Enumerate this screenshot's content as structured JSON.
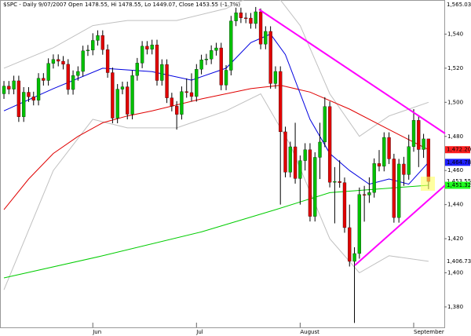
{
  "chart_data": {
    "type": "candlestick",
    "title": "$SPC - Daily 9/07/2007 Open 1478.55, Hi 1478.55, Lo 1449.07, Close 1453.55 (-1.7%)",
    "ylim": [
      1368,
      1560
    ],
    "yticks": [
      {
        "value": 1380,
        "label": "1,380"
      },
      {
        "value": 1400,
        "label": "1,400"
      },
      {
        "value": 1420,
        "label": "1,420"
      },
      {
        "value": 1440,
        "label": "1,440"
      },
      {
        "value": 1460,
        "label": "1,460"
      },
      {
        "value": 1480,
        "label": "1,480"
      },
      {
        "value": 1500,
        "label": "1,500"
      },
      {
        "value": 1520,
        "label": "1,520"
      },
      {
        "value": 1540,
        "label": "1,540"
      }
    ],
    "xlim": [
      -0.8,
      89.2
    ],
    "xticks": [
      {
        "value": 18,
        "label": "Jun"
      },
      {
        "value": 39,
        "label": "Jul"
      },
      {
        "value": 60,
        "label": "August"
      },
      {
        "value": 83,
        "label": "September"
      }
    ],
    "up_color": "#00c000",
    "down_color": "#e00000",
    "open": [
      1505.0,
      1509.5,
      1507.7,
      1512.6,
      1491.5,
      1505.9,
      1503.2,
      1501.2,
      1514.1,
      1512.8,
      1522.8,
      1525.1,
      1524.1,
      1522.3,
      1507.5,
      1515.7,
      1518.1,
      1530.2,
      1530.6,
      1536.3,
      1539.2,
      1530.9,
      1517.4,
      1490.7,
      1507.7,
      1509.1,
      1493.0,
      1515.7,
      1523.0,
      1532.9,
      1531.1,
      1533.7,
      1512.8,
      1522.2,
      1502.6,
      1497.7,
      1492.9,
      1506.3,
      1505.7,
      1503.4,
      1519.4,
      1524.9,
      1525.4,
      1530.4,
      1531.9,
      1510.1,
      1518.8,
      1547.7,
      1552.5,
      1549.5,
      1549.4,
      1546.2,
      1553.1,
      1534.1,
      1541.6,
      1511.0,
      1518.1,
      1482.7,
      1459.0,
      1473.9,
      1455.3,
      1465.8,
      1472.2,
      1433.1,
      1467.7,
      1476.7,
      1497.5,
      1453.1,
      1453.6,
      1452.9,
      1426.5,
      1406.7,
      1411.3,
      1445.9,
      1445.6,
      1447.1,
      1464.1,
      1462.5,
      1479.4,
      1466.8,
      1432.4,
      1463.8,
      1457.6,
      1474.0,
      1489.4,
      1472.3,
      1478.55
    ],
    "high": [
      1512.5,
      1512.5,
      1515.6,
      1515.6,
      1508.9,
      1508.9,
      1506.2,
      1517.1,
      1517.1,
      1525.8,
      1528.1,
      1528.1,
      1527.1,
      1525.3,
      1518.7,
      1521.1,
      1533.2,
      1533.6,
      1540.5,
      1542.2,
      1542.2,
      1533.9,
      1520.4,
      1510.7,
      1512.1,
      1512.1,
      1518.7,
      1526.0,
      1535.9,
      1535.9,
      1536.7,
      1536.7,
      1525.2,
      1525.2,
      1505.6,
      1500.7,
      1509.3,
      1514.0,
      1517.0,
      1522.4,
      1527.9,
      1528.4,
      1533.4,
      1534.9,
      1534.9,
      1521.8,
      1550.7,
      1555.5,
      1555.5,
      1552.5,
      1552.4,
      1555.9,
      1555.0,
      1544.6,
      1544.6,
      1521.1,
      1521.1,
      1485.7,
      1476.9,
      1488.0,
      1468.8,
      1476.0,
      1476.0,
      1470.7,
      1488.0,
      1503.0,
      1500.5,
      1462.0,
      1466.0,
      1455.9,
      1440.0,
      1415.0,
      1450.0,
      1451.0,
      1456.0,
      1467.1,
      1472.0,
      1482.4,
      1482.4,
      1469.8,
      1466.8,
      1468.0,
      1481.0,
      1496.0,
      1492.4,
      1481.5,
      1478.55
    ],
    "low": [
      1502.0,
      1504.7,
      1504.7,
      1488.5,
      1488.5,
      1500.2,
      1498.2,
      1498.2,
      1509.8,
      1509.8,
      1519.8,
      1521.1,
      1519.3,
      1504.5,
      1504.5,
      1512.7,
      1515.1,
      1527.2,
      1527.6,
      1533.3,
      1527.9,
      1514.4,
      1487.7,
      1487.7,
      1504.7,
      1490.0,
      1490.0,
      1512.7,
      1520.0,
      1528.1,
      1528.1,
      1509.8,
      1509.8,
      1499.6,
      1494.7,
      1484.0,
      1489.9,
      1502.7,
      1500.4,
      1500.4,
      1516.4,
      1521.9,
      1522.4,
      1527.4,
      1507.1,
      1507.1,
      1515.8,
      1544.7,
      1546.5,
      1546.4,
      1543.2,
      1543.2,
      1531.1,
      1531.1,
      1508.0,
      1508.0,
      1440.0,
      1456.0,
      1456.0,
      1452.3,
      1440.0,
      1460.0,
      1430.1,
      1430.1,
      1455.0,
      1473.7,
      1450.1,
      1429.0,
      1449.9,
      1423.5,
      1403.7,
      1370.6,
      1408.3,
      1430.0,
      1441.0,
      1444.1,
      1459.5,
      1459.5,
      1463.8,
      1429.4,
      1429.4,
      1451.0,
      1454.6,
      1471.0,
      1462.0,
      1467.4,
      1449.07
    ],
    "close": [
      1509.5,
      1507.7,
      1512.6,
      1491.5,
      1505.9,
      1503.2,
      1501.2,
      1514.1,
      1512.8,
      1522.8,
      1525.1,
      1524.1,
      1522.3,
      1507.5,
      1515.7,
      1518.1,
      1530.2,
      1530.6,
      1536.3,
      1539.2,
      1530.9,
      1517.4,
      1490.7,
      1507.7,
      1509.1,
      1493.0,
      1515.7,
      1523.0,
      1532.9,
      1531.1,
      1533.7,
      1512.8,
      1522.2,
      1502.6,
      1497.7,
      1492.9,
      1506.3,
      1505.7,
      1503.4,
      1519.4,
      1524.9,
      1525.4,
      1530.4,
      1531.9,
      1510.1,
      1518.8,
      1547.7,
      1552.5,
      1549.5,
      1549.4,
      1546.2,
      1553.1,
      1534.1,
      1541.6,
      1511.0,
      1518.1,
      1482.7,
      1459.0,
      1473.9,
      1455.3,
      1465.8,
      1472.2,
      1433.1,
      1467.7,
      1476.7,
      1497.5,
      1453.1,
      1453.6,
      1452.9,
      1426.5,
      1406.7,
      1411.3,
      1445.9,
      1445.6,
      1447.1,
      1464.1,
      1462.5,
      1479.4,
      1466.8,
      1432.4,
      1463.8,
      1457.6,
      1474.0,
      1489.4,
      1472.3,
      1478.55,
      1453.55
    ],
    "lines": [
      {
        "color": "#c0c0c0",
        "x": [
          0,
          10,
          18,
          25,
          35,
          45,
          52,
          56,
          60,
          66,
          72,
          78,
          86
        ],
        "values": [
          1520,
          1532,
          1545,
          1548,
          1548,
          1555,
          1565,
          1560,
          1545,
          1505,
          1480,
          1492,
          1500
        ]
      },
      {
        "color": "#c0c0c0",
        "x": [
          0,
          10,
          18,
          25,
          35,
          45,
          52,
          58,
          66,
          72,
          78,
          86
        ],
        "values": [
          1390,
          1460,
          1490,
          1485,
          1485,
          1495,
          1505,
          1475,
          1420,
          1400,
          1410,
          1406.73
        ]
      },
      {
        "color": "#00cc00",
        "x": [
          0,
          20,
          40,
          55,
          66,
          75,
          86
        ],
        "values": [
          1397,
          1410,
          1424,
          1437,
          1447,
          1449,
          1451.32
        ]
      },
      {
        "color": "#e00000",
        "x": [
          0,
          5,
          10,
          15,
          20,
          25,
          30,
          40,
          50,
          56,
          62,
          70,
          78,
          86
        ],
        "values": [
          1437,
          1455,
          1470,
          1480,
          1488,
          1492,
          1495,
          1502,
          1508,
          1510,
          1506,
          1496,
          1484,
          1472.2
        ]
      },
      {
        "color": "#0000e0",
        "x": [
          0,
          10,
          20,
          30,
          38,
          45,
          50,
          54,
          57,
          62,
          66,
          70,
          74,
          78,
          82,
          86
        ],
        "values": [
          1495,
          1508,
          1520,
          1518,
          1513,
          1520,
          1535,
          1540,
          1528,
          1490,
          1470,
          1460,
          1452,
          1455,
          1452,
          1464.78
        ]
      }
    ],
    "annotations": [
      {
        "value": 1565.03,
        "label": "1,565.03",
        "color": "#ffffff"
      },
      {
        "value": 1472.2,
        "label": "1,472.20",
        "color": "#ff2020"
      },
      {
        "value": 1464.78,
        "label": "1,464.78",
        "color": "#2020ff"
      },
      {
        "value": 1453.55,
        "label": "1,453.55",
        "color": "#ffffff"
      },
      {
        "value": 1451.32,
        "label": "1,451.32",
        "color": "#20ff20"
      },
      {
        "value": 1406.73,
        "label": "1,406.73",
        "color": "#ffffff"
      }
    ]
  }
}
